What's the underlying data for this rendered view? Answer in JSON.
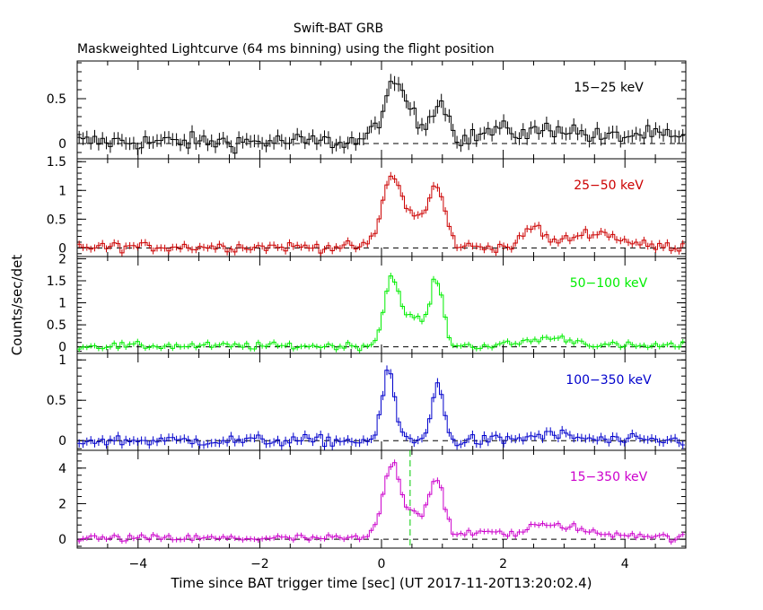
{
  "chart_data": {
    "type": "line",
    "title": "Swift-BAT GRB",
    "subtitle": "Maskweighted Lightcurve (64 ms binning) using the flight position",
    "xlabel": "Time since BAT trigger time [sec] (UT 2017-11-20T13:20:02.4)",
    "ylabel": "Counts/sec/det",
    "xlim": [
      -5,
      5
    ],
    "x_ticks": [
      -4,
      -2,
      0,
      2,
      4
    ],
    "x_tick_labels": [
      "−4",
      "−2",
      "0",
      "2",
      "4"
    ],
    "bin_width_sec": 0.064,
    "marker_x": 0.47,
    "marker_color": "#00cc00",
    "grid": false,
    "panels": [
      {
        "band": "15−25 keV",
        "color": "#000000",
        "ylim": [
          -0.17,
          0.92
        ],
        "y_ticks": [
          0,
          0.5
        ],
        "y_tick_labels": [
          "0",
          "0.5"
        ],
        "background": 0.02,
        "noise": 0.07,
        "peaks": [
          [
            0.25,
            0.62,
            0.22
          ],
          [
            0.95,
            0.45,
            0.15
          ],
          [
            1.9,
            0.12,
            0.3
          ],
          [
            2.9,
            0.15,
            0.4
          ],
          [
            4.3,
            0.08,
            0.4
          ]
        ]
      },
      {
        "band": "25−50 keV",
        "color": "#cc0000",
        "ylim": [
          -0.15,
          1.55
        ],
        "y_ticks": [
          0,
          0.5,
          1,
          1.5
        ],
        "y_tick_labels": [
          "0",
          "0.5",
          "1",
          "1.5"
        ],
        "background": 0.02,
        "noise": 0.06,
        "peaks": [
          [
            0.18,
            1.25,
            0.16
          ],
          [
            0.9,
            1.05,
            0.14
          ],
          [
            0.55,
            0.45,
            0.12
          ],
          [
            2.5,
            0.35,
            0.15
          ],
          [
            3.5,
            0.25,
            0.4
          ]
        ]
      },
      {
        "band": "50−100 keV",
        "color": "#00ee00",
        "ylim": [
          -0.15,
          2.05
        ],
        "y_ticks": [
          0,
          0.5,
          1,
          1.5,
          2
        ],
        "y_tick_labels": [
          "0",
          "0.5",
          "1",
          "1.5",
          "2"
        ],
        "background": 0.02,
        "noise": 0.06,
        "peaks": [
          [
            0.18,
            1.6,
            0.13
          ],
          [
            0.9,
            1.5,
            0.11
          ],
          [
            0.55,
            0.65,
            0.12
          ],
          [
            2.8,
            0.18,
            0.4
          ]
        ]
      },
      {
        "band": "100−350 keV",
        "color": "#0000cc",
        "ylim": [
          -0.12,
          1.08
        ],
        "y_ticks": [
          0,
          0.5,
          1
        ],
        "y_tick_labels": [
          "0",
          "0.5",
          "1"
        ],
        "background": 0.0,
        "noise": 0.05,
        "peaks": [
          [
            0.12,
            0.88,
            0.1
          ],
          [
            0.92,
            0.75,
            0.09
          ],
          [
            2.8,
            0.07,
            0.4
          ]
        ]
      },
      {
        "band": "15−350 keV",
        "color": "#cc00cc",
        "ylim": [
          -0.5,
          5.0
        ],
        "y_ticks": [
          0,
          2,
          4
        ],
        "y_tick_labels": [
          "0",
          "2",
          "4"
        ],
        "background": 0.05,
        "noise": 0.15,
        "peaks": [
          [
            0.18,
            4.2,
            0.15
          ],
          [
            0.9,
            3.4,
            0.13
          ],
          [
            0.55,
            1.2,
            0.12
          ],
          [
            1.8,
            0.4,
            0.3
          ],
          [
            2.5,
            0.55,
            0.15
          ],
          [
            3.0,
            0.7,
            0.3
          ],
          [
            4.0,
            0.25,
            0.4
          ]
        ]
      }
    ]
  }
}
